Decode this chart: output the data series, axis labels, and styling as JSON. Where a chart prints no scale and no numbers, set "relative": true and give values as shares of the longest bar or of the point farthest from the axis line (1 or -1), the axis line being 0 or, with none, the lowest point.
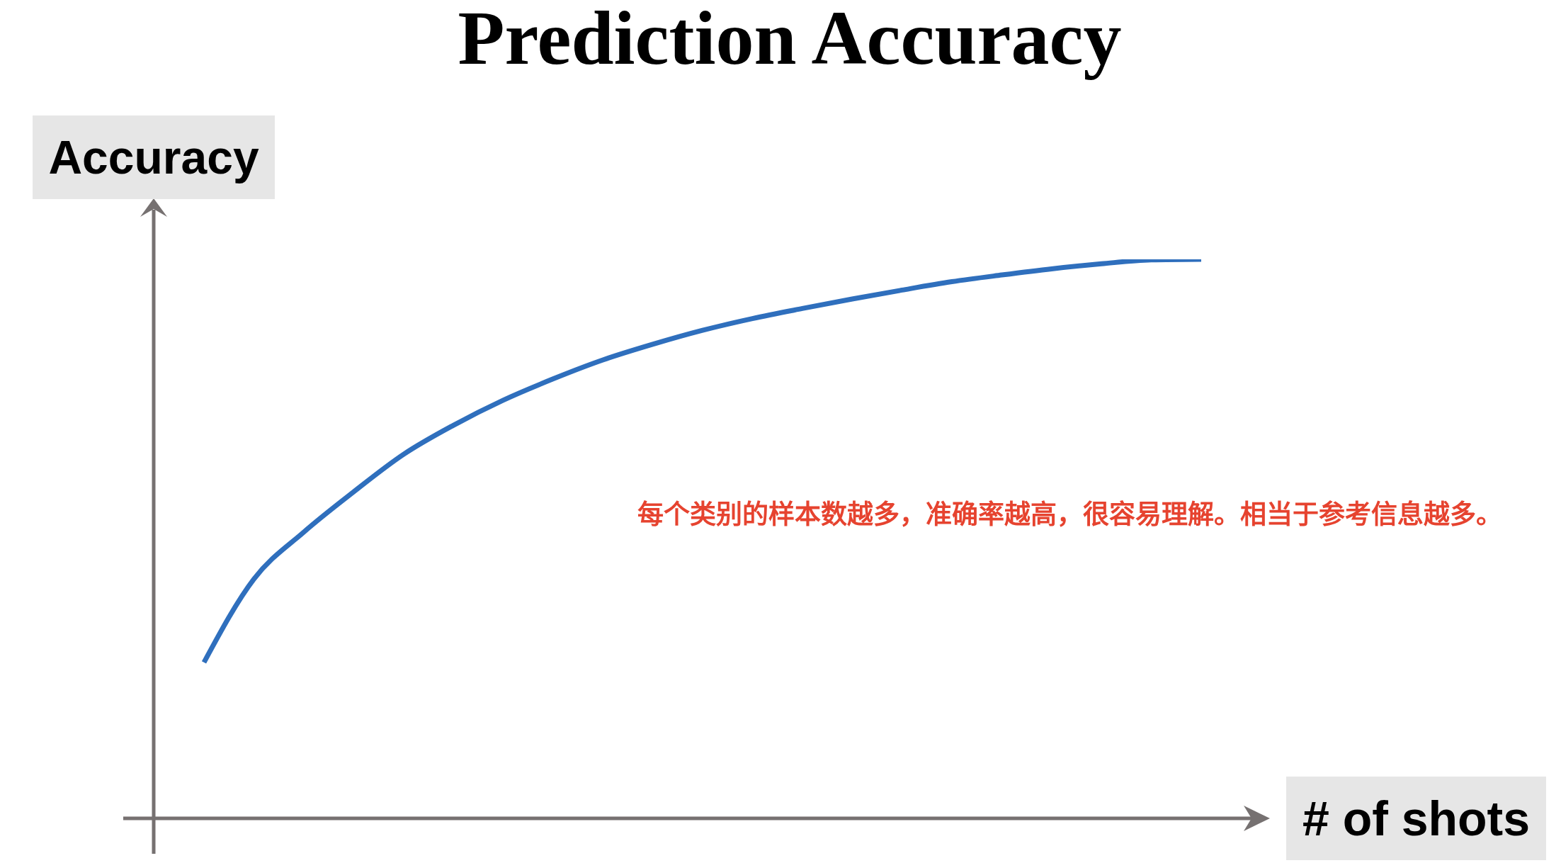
{
  "chart_data": {
    "type": "line",
    "title": "Prediction Accuracy",
    "xlabel": "# of shots",
    "ylabel": "Accuracy",
    "annotations": [
      "每个类别的样本数越多，准确率越高，很容易理解。相当于参考信息越多。"
    ],
    "relative": true,
    "categories": [
      null,
      null,
      null,
      null,
      null,
      null,
      null,
      null,
      null,
      null,
      null,
      null,
      null,
      null,
      null,
      null,
      null,
      null,
      null,
      null,
      null
    ],
    "series": [
      {
        "color": "#2f6fbd",
        "values": [
          0.279,
          0.428,
          0.512,
          0.584,
          0.651,
          0.703,
          0.748,
          0.786,
          0.82,
          0.848,
          0.873,
          0.894,
          0.912,
          0.929,
          0.945,
          0.96,
          0.972,
          0.983,
          0.992,
          0.999,
          1
        ]
      }
    ],
    "marker": "none",
    "line_style": "solid"
  }
}
